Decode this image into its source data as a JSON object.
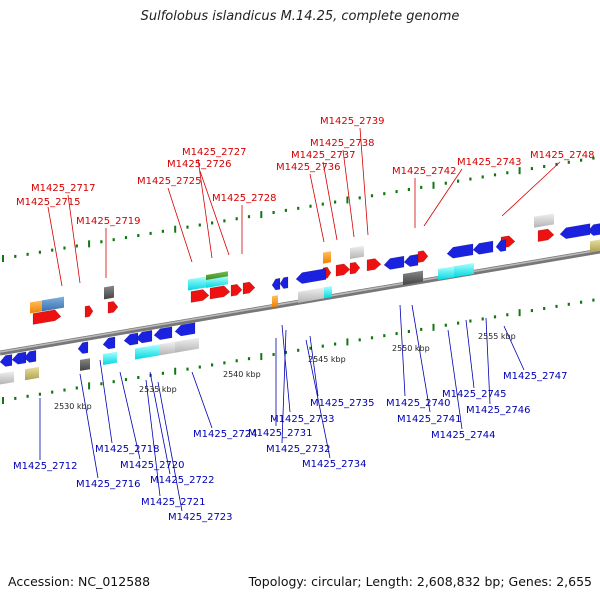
{
  "title": "Sulfolobus islandicus M.14.25, complete genome",
  "footer": {
    "accession": "Accession: NC_012588",
    "stats": "Topology: circular; Length: 2,608,832 bp; Genes: 2,655"
  },
  "colors": {
    "forward_gene": "#ee1111",
    "reverse_gene": "#1a22e0",
    "backbone": "#888888",
    "tick": "#117711",
    "top_label": "#d60000",
    "bottom_label": "#0000b4"
  },
  "kbp_labels": [
    "2530 kbp",
    "2535 kbp",
    "2540 kbp",
    "2545 kbp",
    "2550 kbp",
    "2555 kbp"
  ],
  "top_labels": [
    "M1425_2717",
    "M1425_2715",
    "M1425_2719",
    "M1425_2727",
    "M1425_2726",
    "M1425_2725",
    "M1425_2728",
    "M1425_2739",
    "M1425_2738",
    "M1425_2737",
    "M1425_2736",
    "M1425_2742",
    "M1425_2743",
    "M1425_2748"
  ],
  "bottom_labels": [
    "M1425_2712",
    "M1425_2716",
    "M1425_2718",
    "M1425_2720",
    "M1425_2722",
    "M1425_2721",
    "M1425_2723",
    "M1425_2724",
    "M1425_2731",
    "M1425_2733",
    "M1425_2732",
    "M1425_2734",
    "M1425_2735",
    "M1425_2740",
    "M1425_2741",
    "M1425_2744",
    "M1425_2745",
    "M1425_2746",
    "M1425_2747"
  ]
}
